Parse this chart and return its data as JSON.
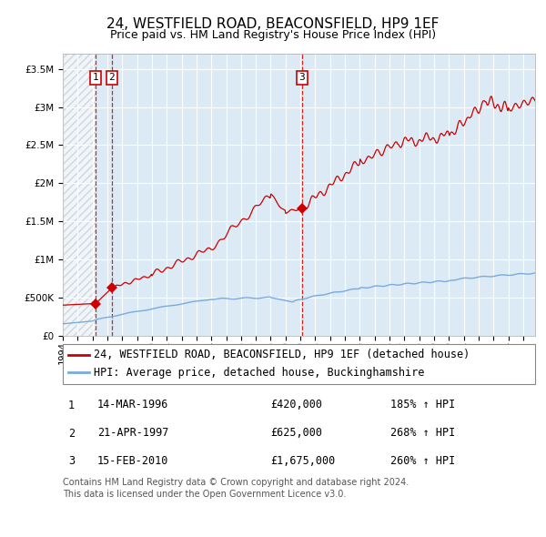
{
  "title": "24, WESTFIELD ROAD, BEACONSFIELD, HP9 1EF",
  "subtitle": "Price paid vs. HM Land Registry's House Price Index (HPI)",
  "ylim": [
    0,
    3700000
  ],
  "xlim_start": 1994.0,
  "xlim_end": 2025.8,
  "background_color": "#ffffff",
  "plot_bg_color": "#dceaf5",
  "grid_color": "#ffffff",
  "legend_label_red": "24, WESTFIELD ROAD, BEACONSFIELD, HP9 1EF (detached house)",
  "legend_label_blue": "HPI: Average price, detached house, Buckinghamshire",
  "transactions": [
    {
      "num": 1,
      "date": "14-MAR-1996",
      "price": 420000,
      "year": 1996.21,
      "hpi_pct": "185%",
      "arrow": "↑"
    },
    {
      "num": 2,
      "date": "21-APR-1997",
      "price": 625000,
      "year": 1997.3,
      "hpi_pct": "268%",
      "arrow": "↑"
    },
    {
      "num": 3,
      "date": "15-FEB-2010",
      "price": 1675000,
      "year": 2010.12,
      "hpi_pct": "260%",
      "arrow": "↑"
    }
  ],
  "footer_line1": "Contains HM Land Registry data © Crown copyright and database right 2024.",
  "footer_line2": "This data is licensed under the Open Government Licence v3.0.",
  "title_fontsize": 11,
  "subtitle_fontsize": 9,
  "tick_fontsize": 7.5,
  "legend_fontsize": 8.5,
  "table_fontsize": 8.5,
  "footer_fontsize": 7,
  "red_color": "#cc0000",
  "blue_color": "#7aaadd",
  "hatch_color": "#bbbbbb"
}
